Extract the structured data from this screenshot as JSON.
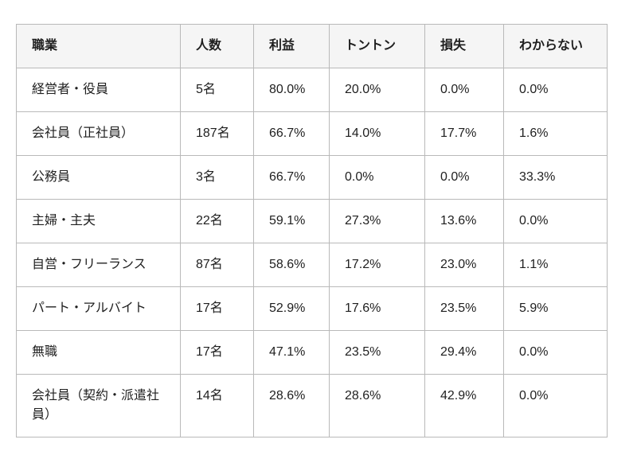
{
  "colors": {
    "page_bg": "#ffffff",
    "header_bg": "#f5f5f5",
    "border": "#b9b9b9",
    "text": "#1f1f1f"
  },
  "chart_data": {
    "type": "table",
    "columns": [
      "職業",
      "人数",
      "利益",
      "トントン",
      "損失",
      "わからない"
    ],
    "rows": [
      [
        "経営者・役員",
        "5名",
        "80.0%",
        "20.0%",
        "0.0%",
        "0.0%"
      ],
      [
        "会社員（正社員）",
        "187名",
        "66.7%",
        "14.0%",
        "17.7%",
        "1.6%"
      ],
      [
        "公務員",
        "3名",
        "66.7%",
        "0.0%",
        "0.0%",
        "33.3%"
      ],
      [
        "主婦・主夫",
        "22名",
        "59.1%",
        "27.3%",
        "13.6%",
        "0.0%"
      ],
      [
        "自営・フリーランス",
        "87名",
        "58.6%",
        "17.2%",
        "23.0%",
        "1.1%"
      ],
      [
        "パート・アルバイト",
        "17名",
        "52.9%",
        "17.6%",
        "23.5%",
        "5.9%"
      ],
      [
        "無職",
        "17名",
        "47.1%",
        "23.5%",
        "29.4%",
        "0.0%"
      ],
      [
        "会社員（契約・派遣社員）",
        "14名",
        "28.6%",
        "28.6%",
        "42.9%",
        "0.0%"
      ]
    ]
  }
}
